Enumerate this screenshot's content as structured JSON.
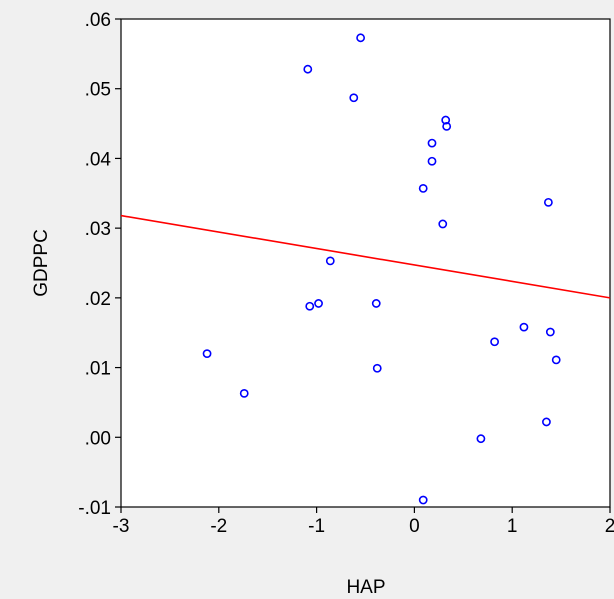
{
  "chart_data": {
    "type": "scatter",
    "title": "",
    "xlabel": "HAP",
    "ylabel": "GDPPC",
    "xlim": [
      -3,
      2
    ],
    "ylim": [
      -0.01,
      0.06
    ],
    "x_ticks": [
      {
        "value": -3,
        "label": "-3"
      },
      {
        "value": -2,
        "label": "-2"
      },
      {
        "value": -1,
        "label": "-1"
      },
      {
        "value": 0,
        "label": "0"
      },
      {
        "value": 1,
        "label": "1"
      },
      {
        "value": 2,
        "label": "2"
      }
    ],
    "y_ticks": [
      {
        "value": -0.01,
        "label": "-.01"
      },
      {
        "value": 0.0,
        "label": ".00"
      },
      {
        "value": 0.01,
        "label": ".01"
      },
      {
        "value": 0.02,
        "label": ".02"
      },
      {
        "value": 0.03,
        "label": ".03"
      },
      {
        "value": 0.04,
        "label": ".04"
      },
      {
        "value": 0.05,
        "label": ".05"
      },
      {
        "value": 0.06,
        "label": ".06"
      }
    ],
    "grid": false,
    "marker_color": "#0000ff",
    "fit_line_color": "#ff0000",
    "points": [
      {
        "x": -0.55,
        "y": 0.0573
      },
      {
        "x": -1.09,
        "y": 0.0528
      },
      {
        "x": -0.62,
        "y": 0.0487
      },
      {
        "x": 0.32,
        "y": 0.0455
      },
      {
        "x": 0.33,
        "y": 0.0446
      },
      {
        "x": 0.18,
        "y": 0.0422
      },
      {
        "x": 0.18,
        "y": 0.0396
      },
      {
        "x": 0.09,
        "y": 0.0357
      },
      {
        "x": 1.37,
        "y": 0.0337
      },
      {
        "x": 0.29,
        "y": 0.0306
      },
      {
        "x": -0.86,
        "y": 0.0253
      },
      {
        "x": -0.98,
        "y": 0.0192
      },
      {
        "x": -1.07,
        "y": 0.0188
      },
      {
        "x": -0.39,
        "y": 0.0192
      },
      {
        "x": 1.12,
        "y": 0.0158
      },
      {
        "x": 1.39,
        "y": 0.0151
      },
      {
        "x": 0.82,
        "y": 0.0137
      },
      {
        "x": 1.45,
        "y": 0.0111
      },
      {
        "x": -2.12,
        "y": 0.012
      },
      {
        "x": -0.38,
        "y": 0.0099
      },
      {
        "x": -1.74,
        "y": 0.0063
      },
      {
        "x": 1.35,
        "y": 0.0022
      },
      {
        "x": 0.68,
        "y": -0.0002
      },
      {
        "x": 0.09,
        "y": -0.009
      }
    ],
    "fit_line": {
      "x": [
        -3,
        2
      ],
      "y": [
        0.0318,
        0.02
      ]
    }
  }
}
